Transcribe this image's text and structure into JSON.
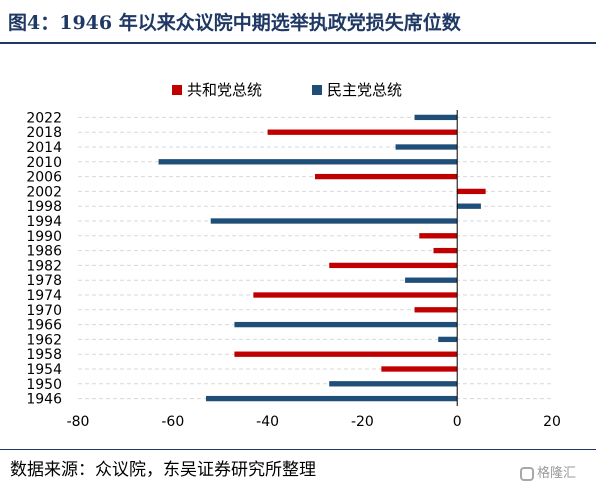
{
  "title": "图4：1946 年以来众议院中期选举执政党损失席位数",
  "source": "数据来源：众议院，东吴证券研究所整理",
  "watermark": "格隆汇",
  "colors": {
    "republican": "#c00000",
    "democrat": "#1f4e79",
    "title": "#1f3864",
    "grid": "#d9d9d9"
  },
  "chart_data": {
    "type": "bar",
    "orientation": "horizontal",
    "categories": [
      "2022",
      "2018",
      "2014",
      "2010",
      "2006",
      "2002",
      "1998",
      "1994",
      "1990",
      "1986",
      "1982",
      "1978",
      "1974",
      "1970",
      "1966",
      "1962",
      "1958",
      "1954",
      "1950",
      "1946"
    ],
    "values": [
      -9,
      -40,
      -13,
      -63,
      -30,
      6,
      5,
      -52,
      -8,
      -5,
      -27,
      -11,
      -43,
      -9,
      -47,
      -4,
      -47,
      -16,
      -27,
      -53
    ],
    "party": [
      "民主党总统",
      "共和党总统",
      "民主党总统",
      "民主党总统",
      "共和党总统",
      "共和党总统",
      "民主党总统",
      "民主党总统",
      "共和党总统",
      "共和党总统",
      "共和党总统",
      "民主党总统",
      "共和党总统",
      "共和党总统",
      "民主党总统",
      "民主党总统",
      "共和党总统",
      "共和党总统",
      "民主党总统",
      "民主党总统"
    ],
    "legend": [
      {
        "name": "共和党总统",
        "color": "#c00000"
      },
      {
        "name": "民主党总统",
        "color": "#1f4e79"
      }
    ],
    "legend_position": "top",
    "xlim": [
      -80,
      20
    ],
    "xticks": [
      -80,
      -60,
      -40,
      -20,
      0,
      20
    ],
    "grid": true
  }
}
